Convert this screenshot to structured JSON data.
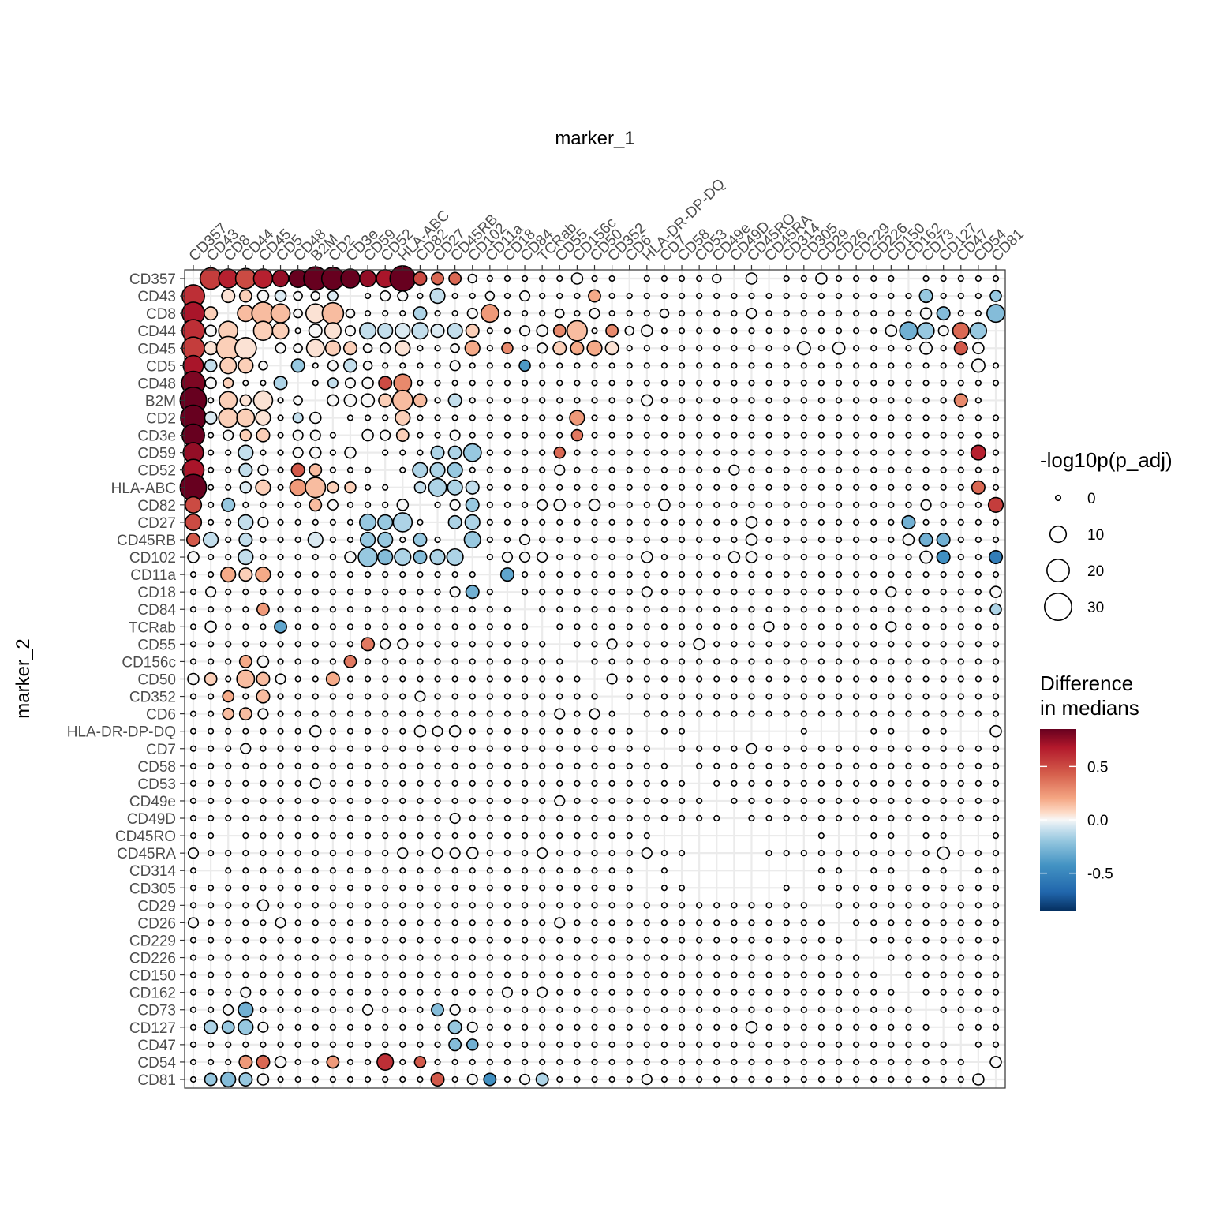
{
  "chart_data": {
    "type": "bubble-heatmap",
    "x_title": "marker_1",
    "y_title": "marker_2",
    "markers": [
      "CD357",
      "CD43",
      "CD8",
      "CD44",
      "CD45",
      "CD5",
      "CD48",
      "B2M",
      "CD2",
      "CD3e",
      "CD59",
      "CD52",
      "HLA-ABC",
      "CD82",
      "CD27",
      "CD45RB",
      "CD102",
      "CD11a",
      "CD18",
      "CD84",
      "TCRab",
      "CD55",
      "CD156c",
      "CD50",
      "CD352",
      "CD6",
      "HLA-DR-DP-DQ",
      "CD7",
      "CD58",
      "CD53",
      "CD49e",
      "CD49D",
      "CD45RO",
      "CD45RA",
      "CD314",
      "CD305",
      "CD29",
      "CD26",
      "CD229",
      "CD226",
      "CD150",
      "CD162",
      "CD73",
      "CD127",
      "CD47",
      "CD54",
      "CD81"
    ],
    "size_legend": {
      "title": "-log10p(p_adj)",
      "breaks": [
        0,
        10,
        20,
        30
      ]
    },
    "color_legend": {
      "title_line1": "Difference",
      "title_line2": "in medians",
      "range": [
        -0.85,
        0.85
      ],
      "breaks": [
        0.5,
        0.0,
        -0.5
      ],
      "break_labels": [
        "0.5",
        "0.0",
        "-0.5"
      ],
      "palette": "RdBu (reversed)"
    },
    "grid": true,
    "legend_position": "right",
    "cell_encoding": "row = marker_2, column = marker_1; each cell 'size,diff' with size = -log10p(p_adj), diff = difference in medians; blank = no point",
    "rows": {
      "CD357": ",|18,0.55|14,0.65|16,0.5|14,0.65|10,0.75|12,0.85|22,0.85|20,0.85|14,0.85|10,0.75|12,0.7|26,0.85|6,0.5|5,0.4|5,0.4|2,0|0,0|0,0|0,0|0,0|0,0|4,0|0,0|0,0|,|0,0|0,0|0,0|0,0|2,0|,|4,0|,|0,0|0,0|4,0|0,0|0,0|0,0|0,0|,|0,0|0,0|0,0|0,0|0,0",
      "CD43": "20,0.6|,|6,0.05|5,0.1|4,0|4,-0.05|2,0|2,0|3,-0.05|,|0,0|3,0|3,0|0,0|8,-0.1|0,0|0,0|2,0|0,0|3,0|0,0|0,0|0,0|5,0.2|0,0|0,0|0,0|0,0|0,0|0,0|0,0|0,0|0,0|0,0|0,0|0,0|0,0|0,0|0,0|0,0|0,0|0,0|6,-0.2|0,0|0,0|0,0|4,-0.2",
      "CD8": "20,0.7|6,0.1|,|10,0.15|20,0.15|14,0.15|2,0|14,0.05|18,0.15|2,0|0,0|0,0|0,0|6,-0.15|0,0|0,0|3,0|12,0.25|0,0|0,0|0,0|2,0|0,0|3,0|0,0|0,0|0,0|2,0|0,0|0,0|0,0|0,0|3,0|0,0|0,0|0,0|0,0|0,0|0,0|0,0|0,0|0,0|4,0|6,-0.25|0,0|0,0|12,-0.25",
      "CD44": "20,0.6|4,0|14,0.1|,|14,0.1|10,0.1|0,0|6,0|10,0.05|3,0|10,-0.1|8,-0.1|8,-0.05|10,-0.1|6,-0.05|8,-0.1|6,0.1|0,0|0,0|3,0|4,0|5,0.3|16,0.15|0,0|5,0.3|2,0|4,0|0,0|0,0|0,0|0,0|0,0|0,0|0,0|0,0|0,0|0,0|0,0|0,0|0,0|4,0|12,-0.3|10,-0.2|3,0|10,0.4|10,-0.2",
      "CD45": "20,0.55|6,0.05|22,0.1|18,0.05|,|3,0|2,0|12,0.05|8,0.1|6,0.1|2,0|3,0|8,0.05|0,0|0,0|2,0|8,0.2|0,0|4,0.3|0,0|3,0|6,0.1|6,0.2|8,0.2|6,0.05|0,0|0,0|0,0|0,0|0,0|0,0|0,0|0,0|0,0|0,0|6,0|0,0|5,0|0,0|0,0|0,0|0,0|5,0|0,0|6,0.45|4,0",
      "CD5": "16,0.7|5,-0.1|10,0.1|8,0.1|2,0|,|6,-0.2|0,0|3,0|6,-0.1|2,0|0,0|0,0|0,0|0,0|3,0|0,0|0,0|0,0|4,-0.4|0,0|0,0|0,0|0,0|0,0|0,0|0,0|0,0|0,0|0,0|0,0|0,0|0,0|0,0|0,0|0,0|0,0|0,0|0,0|0,0|0,0|0,0|0,0|0,0|0,0|6,0|0,0",
      "CD48": "22,0.8|4,0|3,0.1|0,0|0,0|6,-0.15|,|0,0|3,-0.1|3,0|4,0|6,0.5|12,0.3|0,0|0,0|0,0|0,0|0,0|0,0|0,0|0,0|0,0|0,0|0,0|0,0|0,0|0,0|0,0|0,0|0,0|0,0|0,0|0,0|0,0|0,0|0,0|0,0|0,0|0,0|0,0|0,0|0,0|0,0|0,0|0,0|0,0|0,0",
      "B2M": "28,0.85|0,0|12,0.1|4,0.05|14,0.05|0,0|2,0|,|4,0|5,0|6,0|6,0.1|16,0.15|6,0.15|0,0|6,-0.1|0,0|0,0|0,0|0,0|0,0|0,0|0,0|0,0|0,0|0,0|4,0|0,0|0,0|0,0|0,0|0,0|0,0|0,0|0,0|0,0|0,0|0,0|0,0|0,0|0,0|0,0|0,0|0,0|6,0.3|0,0",
      "CD2": "26,0.85|5,-0.05|14,0.1|12,0.1|8,0.05|0,0|3,-0.1|4,0|,|0,0|0,0|0,0|8,0.1|0,0|0,0|0,0|0,0|0,0|0,0|0,0|0,0|0,0|8,0.25|0,0|0,0|0,0|0,0|0,0|0,0|0,0|0,0|0,0|0,0|0,0|0,0|0,0|0,0|0,0|0,0|0,0|0,0|0,0|0,0|0,0|0,0|0,0|0,0",
      "CD3e": "20,0.85|0,0|3,0|4,0.1|6,0.1|0,0|3,0|3,0|0,0|,|4,0|3,0|5,0.1|0,0|0,0|3,0|0,0|0,0|0,0|0,0|0,0|0,0|4,0.35|0,0|0,0|0,0|0,0|0,0|0,0|0,0|0,0|0,0|0,0|0,0|0,0|0,0|0,0|0,0|0,0|0,0|0,0|0,0|0,0|0,0|0,0|0,0|0,0",
      "CD59": "16,0.75|0,0|0,0|8,-0.1|0,0|0,0|3,0|4,0|0,0|4,0|,|0,0|0,0|0,0|6,-0.15|6,-0.15|12,-0.2|0,0|0,0|0,0|0,0|4,0.4|0,0|0,0|0,0|0,0|0,0|0,0|0,0|0,0|0,0|0,0|0,0|0,0|0,0|0,0|0,0|0,0|0,0|0,0|0,0|0,0|0,0|0,0|0,0|8,0.65|0,0",
      "CD52": "18,0.7|0,0|0,0|6,-0.1|3,0|0,0|6,0.45|5,0.15|0,0|0,0|0,0|,|0,0|8,-0.15|8,-0.15|8,-0.2|0,0|0,0|0,0|0,0|0,0|3,0|0,0|0,0|0,0|0,0|0,0|0,0|0,0|0,0|0,0|3,0|0,0|0,0|0,0|0,0|0,0|0,0|0,0|0,0|0,0|0,0|0,0|0,0|0,0|0,0|0,0",
      "HLA-ABC": "28,0.85|0,0|0,0|4,-0.05|8,0.1|0,0|10,0.25|16,0.15|4,0.1|4,0.1|0,0|0,0|,|4,-0.1|12,-0.15|8,-0.15|6,-0.1|0,0|0,0|0,0|0,0|0,0|0,0|0,0|0,0|0,0|0,0|0,0|0,0|0,0|0,0|0,0|0,0|0,0|0,0|0,0|0,0|0,0|0,0|0,0|0,0|0,0|0,0|0,0|0,0|6,0.4|0,0",
      "CD82": "10,0.5|0,0|6,-0.2|0,0|0,0|0,0|0,0|5,0.15|3,0|0,0|0,0|0,0|4,0|,|0,0|3,0|6,-0.2|0,0|0,0|0,0|3,0|4,0|0,0|4,0|0,0|0,0|0,0|4,0|0,0|0,0|0,0|0,0|0,0|0,0|0,0|0,0|0,0|0,0|0,0|0,0|0,0|0,0|3,0|0,0|0,0|0,0|8,0.55",
      "CD27": "10,0.5|0,0|0,0|8,-0.1|3,0|0,0|0,0|0,0|0,0|0,0|10,-0.2|8,-0.2|14,-0.15|0,0|,|6,-0.15|8,-0.15|0,0|0,0|0,0|0,0|0,0|0,0|0,0|0,0|0,0|0,0|0,0|0,0|0,0|0,0|0,0|4,0|0,0|0,0|0,0|0,0|0,0|0,0|0,0|0,0|6,-0.3|0,0|0,0|0,0|0,0|0,0",
      "CD45RB": "6,0.45|8,-0.1|0,0|6,-0.1|0,0|0,0|0,0|8,-0.05|0,0|0,0|8,-0.2|8,-0.2|0,0|6,-0.2|0,0|,|10,-0.2|0,0|0,0|3,0|0,0|0,0|0,0|0,0|0,0|0,0|0,0|0,0|0,0|0,0|0,0|0,0|4,0|0,0|0,0|0,0|0,0|0,0|0,0|0,0|0,0|4,0|6,-0.3|6,-0.3|0,0|0,0|0,0",
      "CD102": "4,0|0,0|0,0|8,-0.1|0,0|0,0|0,0|0,0|0,0|4,0|14,-0.2|8,-0.25|10,-0.15|6,-0.25|8,-0.15|10,-0.15|,|0,0|3,0|3,0|3,0|0,0|0,0|0,0|0,0|0,0|4,0|0,0|0,0|0,0|0,0|4,0|4,0|0,0|0,0|0,0|0,0|0,0|0,0|0,0|0,0|0,0|5,0|6,-0.45|0,0|0,0|6,-0.55",
      "CD11a": "0,0|0,0|8,0.2|6,0.1|8,0.2|0,0|0,0|0,0|0,0|0,0|0,0|0,0|0,0|0,0|0,0|0,0|0,0|,|6,-0.35|0,0|0,0|0,0|0,0|0,0|0,0|0,0|0,0|0,0|0,0|0,0|0,0|0,0|0,0|0,0|0,0|0,0|0,0|0,0|0,0|0,0|0,0|0,0|0,0|0,0|0,0|0,0|0,0",
      "CD18": "0,0|3,0|0,0|0,0|0,0|0,0|0,0|0,0|0,0|0,0|0,0|0,0|0,0|0,0|0,0|3,0|6,-0.3|0,0|,|0,0|0,0|0,0|0,0|0,0|0,0|0,0|3,0|0,0|0,0|0,0|0,0|0,0|0,0|0,0|0,0|0,0|0,0|0,0|0,0|0,0|3,0|0,0|0,0|0,0|0,0|0,0|4,0",
      "CD84": "0,0|0,0|0,0|0,0|5,0.25|0,0|0,0|0,0|0,0|0,0|0,0|0,0|0,0|0,0|0,0|0,0|0,0|0,0|0,0|,|0,0|0,0|0,0|0,0|0,0|0,0|0,0|0,0|0,0|0,0|0,0|0,0|0,0|0,0|0,0|0,0|0,0|0,0|0,0|0,0|0,0|0,0|0,0|0,0|0,0|0,0|4,-0.15",
      "TCRab": "0,0|4,0|0,0|0,0|0,0|5,-0.35|0,0|0,0|0,0|0,0|0,0|0,0|0,0|0,0|0,0|0,0|0,0|0,0|0,0|0,0|,|0,0|0,0|0,0|0,0|0,0|0,0|0,0|0,0|0,0|0,0|0,0|0,0|3,0|0,0|0,0|0,0|0,0|0,0|0,0|3,0|0,0|0,0|0,0|0,0|0,0|0,0",
      "CD55": "0,0|0,0|0,0|0,0|0,0|0,0|0,0|0,0|0,0|0,0|6,0.35|3,0|3,0|0,0|0,0|0,0|0,0|0,0|0,0|0,0|0,0|,|0,0|0,0|3,0|0,0|0,0|0,0|0,0|4,0|0,0|0,0|0,0|0,0|0,0|0,0|0,0|0,0|0,0|0,0|0,0|0,0|0,0|0,0|0,0|0,0|0,0",
      "CD156c": "0,0|0,0|0,0|5,0.2|4,0|0,0|0,0|0,0|0,0|5,0.35|0,0|0,0|0,0|0,0|0,0|0,0|0,0|0,0|0,0|0,0|0,0|0,0|,|0,0|0,0|0,0|0,0|0,0|0,0|0,0|0,0|0,0|0,0|0,0|0,0|0,0|0,0|0,0|0,0|0,0|0,0|0,0|0,0|0,0|0,0|0,0|0,0",
      "CD50": "4,0|5,0.1|0,0|12,0.15|6,0.15|3,0|0,0|0,0|6,0.2|0,0|0,0|0,0|0,0|0,0|0,0|0,0|0,0|0,0|0,0|0,0|0,0|0,0|0,0|,|3,0|0,0|0,0|0,0|0,0|0,0|0,0|0,0|0,0|0,0|0,0|0,0|0,0|0,0|0,0|0,0|0,0|0,0|0,0|0,0|0,0|0,0|0,0",
      "CD352": "0,0|0,0|4,0.2|0,0|6,0.15|0,0|0,0|0,0|0,0|0,0|0,0|0,0|0,0|3,0|0,0|0,0|0,0|0,0|0,0|0,0|0,0|0,0|0,0|0,0|,|0,0|0,0|0,0|0,0|0,0|0,0|0,0|0,0|0,0|0,0|0,0|0,0|0,0|0,0|0,0|0,0|0,0|0,0|0,0|0,0|0,0|0,0",
      "CD6": "0,0|0,0|4,0.15|5,0.15|3,0|0,0|0,0|0,0|0,0|0,0|0,0|0,0|0,0|0,0|0,0|0,0|0,0|0,0|0,0|0,0|0,0|3,0|0,0|3,0|0,0|,|0,0|0,0|0,0|0,0|0,0|0,0|0,0|0,0|0,0|0,0|0,0|0,0|0,0|0,0|0,0|0,0|0,0|0,0|0,0|0,0|0,0",
      "HLA-DR-DP-DQ": "0,0|0,0|0,0|0,0|0,0|0,0|0,0|4,0|0,0|0,0|0,0|0,0|0,0|4,0|3,0|4,0|0,0|0,0|0,0|0,0|0,0|0,0|0,0|0,0|0,0|0,0|,|0,0|0,0|,|,|,|,|,|,|0,0|,|,|,|0,0|0,0|,|0,0|0,0|,|,|4,0",
      "CD7": "0,0|0,0|0,0|3,0|0,0|0,0|0,0|0,0|0,0|0,0|0,0|0,0|0,0|0,0|0,0|0,0|0,0|0,0|0,0|0,0|0,0|0,0|0,0|0,0|0,0|0,0|0,0|,|0,0|0,0|0,0|0,0|3,0|0,0|0,0|0,0|0,0|0,0|0,0|0,0|0,0|0,0|0,0|0,0|0,0|0,0|0,0",
      "CD58": "0,0|0,0|0,0|0,0|0,0|0,0|0,0|0,0|0,0|0,0|0,0|0,0|0,0|0,0|0,0|0,0|0,0|0,0|0,0|0,0|0,0|0,0|0,0|0,0|0,0|0,0|0,0|0,0|,|0,0|0,0|0,0|0,0|0,0|0,0|0,0|0,0|0,0|0,0|0,0|0,0|0,0|0,0|0,0|0,0|0,0|0,0",
      "CD53": "0,0|0,0|0,0|0,0|0,0|0,0|0,0|3,0|0,0|0,0|0,0|0,0|0,0|0,0|0,0|0,0|0,0|0,0|0,0|0,0|0,0|0,0|0,0|0,0|0,0|0,0|0,0|0,0|0,0|,|0,0|0,0|0,0|0,0|0,0|0,0|0,0|0,0|0,0|0,0|0,0|0,0|0,0|0,0|0,0|0,0|0,0",
      "CD49e": "0,0|0,0|0,0|0,0|0,0|0,0|0,0|0,0|0,0|0,0|0,0|0,0|0,0|0,0|0,0|0,0|0,0|0,0|0,0|0,0|0,0|3,0|0,0|0,0|0,0|0,0|0,0|0,0|0,0|0,0|,|0,0|0,0|0,0|0,0|0,0|0,0|0,0|0,0|0,0|0,0|0,0|0,0|0,0|0,0|0,0|0,0",
      "CD49D": "0,0|0,0|0,0|0,0|0,0|0,0|0,0|0,0|0,0|0,0|0,0|0,0|0,0|0,0|0,0|3,0|0,0|0,0|0,0|0,0|0,0|0,0|0,0|0,0|0,0|0,0|0,0|0,0|0,0|0,0|0,0|,|0,0|0,0|0,0|0,0|0,0|0,0|0,0|0,0|0,0|0,0|0,0|0,0|0,0|0,0|0,0",
      "CD45RO": "0,0|0,0|,|0,0|0,0|0,0|0,0|0,0|0,0|0,0|0,0|0,0|0,0|0,0|0,0|0,0|0,0|0,0|0,0|0,0|0,0|0,0|0,0|0,0|0,0|0,0|0,0|,|,|,|,|,|,|,|,|,|0,0|,|,|0,0|0,0|,|0,0|0,0|,|,|0,0",
      "CD45RA": "3,0|0,0|0,0|0,0|0,0|0,0|0,0|0,0|0,0|0,0|0,0|0,0|3,0|0,0|3,0|3,0|4,0|0,0|0,0|0,0|3,0|0,0|0,0|0,0|0,0|0,0|3,0|0,0|0,0|,|,|,|,|0,0|0,0|0,0|0,0|0,0|0,0|0,0|0,0|0,0|0,0|5,0|0,0|0,0|0,0",
      "CD314": "0,0|,|0,0|0,0|0,0|0,0|0,0|0,0|0,0|0,0|0,0|0,0|0,0|0,0|0,0|0,0|0,0|0,0|0,0|0,0|0,0|0,0|0,0|0,0|0,0|0,0|,|0,0|,|,|,|,|,|,|,|,|0,0|0,0|,|0,0|0,0|,|0,0|0,0|,|0,0|0,0",
      "CD305": "0,0|0,0|0,0|0,0|0,0|0,0|0,0|0,0|0,0|0,0|0,0|0,0|0,0|0,0|0,0|0,0|0,0|0,0|0,0|0,0|0,0|0,0|0,0|0,0|0,0|0,0|,|0,0|0,0|,|,|,|,|,|0,0|,|0,0|0,0|0,0|0,0|0,0|0,0|0,0|0,0|0,0|0,0|0,0",
      "CD29": "0,0|0,0|0,0|0,0|4,0|0,0|0,0|0,0|0,0|0,0|0,0|0,0|0,0|0,0|0,0|0,0|0,0|0,0|0,0|0,0|0,0|0,0|0,0|0,0|0,0|0,0|0,0|0,0|0,0|0,0|0,0|0,0|0,0|0,0|0,0|0,0|,|0,0|0,0|0,0|0,0|0,0|0,0|0,0|0,0|0,0|0,0",
      "CD26": "3,0|0,0|0,0|0,0|0,0|3,0|0,0|0,0|0,0|0,0|0,0|0,0|0,0|0,0|0,0|0,0|0,0|0,0|0,0|0,0|0,0|3,0|0,0|0,0|0,0|0,0|0,0|0,0|0,0|0,0|0,0|0,0|0,0|0,0|0,0|0,0|0,0|,|0,0|0,0|0,0|0,0|0,0|0,0|0,0|0,0|0,0",
      "CD229": "0,0|0,0|0,0|0,0|0,0|0,0|0,0|0,0|0,0|0,0|0,0|0,0|0,0|0,0|0,0|0,0|0,0|0,0|0,0|0,0|0,0|0,0|0,0|0,0|0,0|0,0|0,0|0,0|0,0|0,0|0,0|0,0|0,0|0,0|0,0|0,0|0,0|0,0|,|0,0|0,0|0,0|0,0|0,0|0,0|0,0|0,0",
      "CD226": "0,0|0,0|0,0|0,0|0,0|0,0|0,0|0,0|0,0|0,0|0,0|0,0|0,0|0,0|0,0|0,0|0,0|0,0|0,0|0,0|0,0|0,0|0,0|0,0|0,0|0,0|0,0|0,0|0,0|0,0|0,0|0,0|0,0|0,0|0,0|0,0|0,0|0,0|0,0|,|0,0|0,0|0,0|0,0|0,0|0,0|0,0",
      "CD150": "0,0|0,0|0,0|0,0|0,0|0,0|0,0|0,0|0,0|0,0|0,0|0,0|0,0|0,0|0,0|0,0|0,0|0,0|0,0|0,0|0,0|0,0|0,0|0,0|0,0|0,0|0,0|0,0|0,0|0,0|0,0|0,0|0,0|0,0|0,0|0,0|0,0|0,0|0,0|0,0|,|0,0|0,0|0,0|0,0|0,0|0,0",
      "CD162": "0,0|0,0|0,0|3,0|0,0|0,0|0,0|0,0|0,0|0,0|0,0|0,0|0,0|0,0|0,0|0,0|0,0|0,0|3,0|0,0|3,0|0,0|0,0|0,0|0,0|0,0|0,0|0,0|0,0|0,0|0,0|0,0|0,0|0,0|0,0|0,0|0,0|0,0|0,0|0,0|0,0|,|0,0|0,0|0,0|0,0|0,0",
      "CD73": "0,0|0,0|3,0|8,-0.3|0,0|0,0|0,0|0,0|0,0|0,0|3,0|0,0|0,0|0,0|5,-0.25|3,0|0,0|0,0|0,0|0,0|0,0|0,0|0,0|0,0|0,0|0,0|0,0|0,0|0,0|0,0|0,0|0,0|0,0|0,0|0,0|0,0|0,0|0,0|0,0|0,0|0,0|0,0|,|0,0|0,0|0,0|0,0",
      "CD127": "0,0|6,-0.15|5,-0.2|8,-0.2|3,0|0,0|0,0|0,0|0,0|0,0|0,0|0,0|0,0|0,0|0,0|6,-0.2|3,0|0,0|0,0|0,0|0,0|0,0|0,0|0,0|0,0|0,0|0,0|0,0|0,0|0,0|0,0|0,0|4,0|0,0|0,0|0,0|0,0|0,0|0,0|0,0|0,0|0,0|0,0|,|0,0|0,0|0,0",
      "CD47": "0,0|0,0|0,0|0,0|0,0|0,0|0,0|0,0|0,0|0,0|0,0|0,0|0,0|0,0|0,0|5,-0.25|4,-0.3|0,0|0,0|0,0|0,0|0,0|0,0|0,0|0,0|0,0|0,0|0,0|0,0|0,0|0,0|0,0|0,0|0,0|0,0|0,0|0,0|0,0|0,0|0,0|0,0|0,0|0,0|0,0|,|0,0|0,0",
      "CD54": "0,0|0,0|0,0|6,0.25|6,0.4|4,0|0,0|0,0|5,0.25|0,0|0,0|10,0.6|0,0|4,0.45|0,0|0,0|0,0|0,0|0,0|0,0|0,0|0,0|0,0|0,0|0,0|0,0|0,0|0,0|0,0|0,0|0,0|0,0|0,0|0,0|0,0|0,0|0,0|0,0|0,0|0,0|0,0|0,0|0,0|0,0|0,0|,|4,0",
      "CD81": "0,0|5,-0.2|8,-0.25|6,-0.2|4,0|0,0|0,0|0,0|0,0|0,0|0,0|0,0|0,0|0,0|6,0.45|0,0|3,0|5,-0.45|0,0|3,0|5,-0.15|0,0|0,0|0,0|0,0|0,0|3,0|0,0|0,0|0,0|0,0|0,0|0,0|0,0|0,0|0,0|0,0|0,0|0,0|0,0|0,0|0,0|0,0|0,0|0,0|4,0|,"
    }
  }
}
